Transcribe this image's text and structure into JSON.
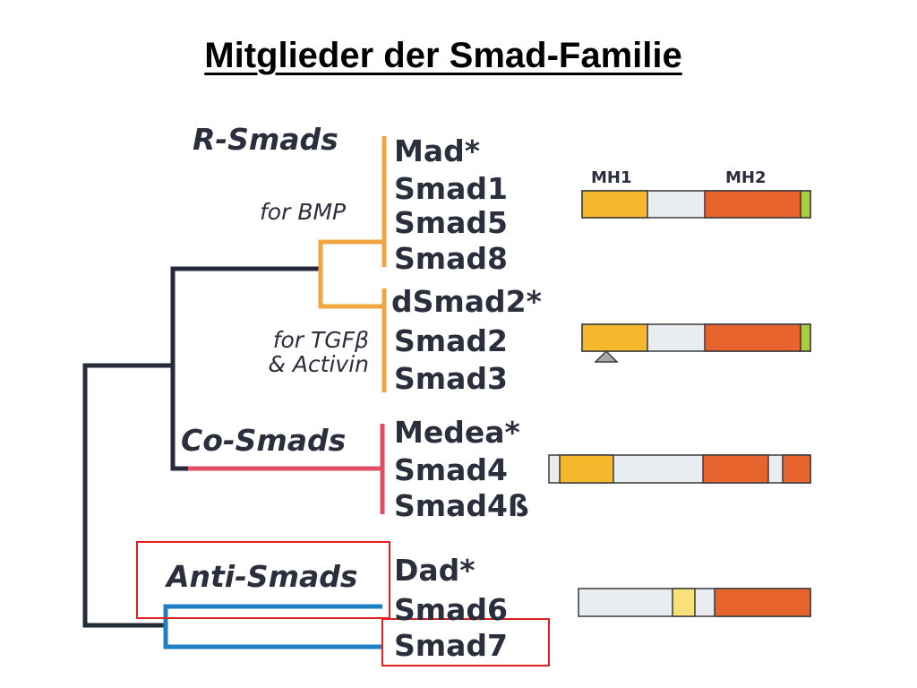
{
  "title": "Mitglieder der Smad-Familie",
  "groups": {
    "r_smads": {
      "label": "R-Smads",
      "bmp": {
        "label": "for BMP",
        "members": [
          "Mad*",
          "Smad1",
          "Smad5",
          "Smad8"
        ]
      },
      "tgf": {
        "label_line1": "for TGFβ",
        "label_line2": "& Activin",
        "members": [
          "dSmad2*",
          "Smad2",
          "Smad3"
        ]
      }
    },
    "co_smads": {
      "label": "Co-Smads",
      "members": [
        "Medea*",
        "Smad4",
        "Smad4ß"
      ]
    },
    "anti_smads": {
      "label": "Anti-Smads",
      "members": [
        "Dad*",
        "Smad6",
        "Smad7"
      ]
    }
  },
  "domains": {
    "mh1": "MH1",
    "mh2": "MH2"
  },
  "colors": {
    "tree": "#262b3a",
    "r_smad_branch": "#f0a540",
    "co_smad_branch": "#de4f63",
    "anti_smad_branch": "#1f7fc4",
    "highlight_box": "#e02020",
    "mh1_domain": "#f5b82c",
    "mh2_domain": "#e8642e",
    "linker": "#e9edf2",
    "c_terminal": "#a6cf3a"
  }
}
